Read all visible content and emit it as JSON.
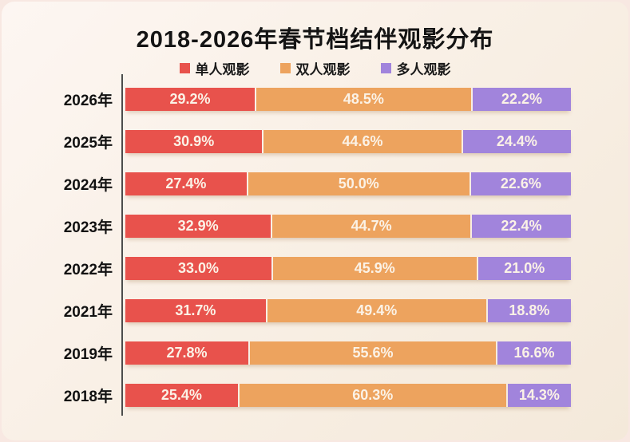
{
  "title": "2018-2026年春节档结伴观影分布",
  "colors": {
    "solo": "#E8524C",
    "pair": "#EDA35E",
    "group": "#A184DC",
    "bar_label_text": "#FBF2E6",
    "axis_line": "#4D4D4D",
    "card_background_top": "#FDF6F2",
    "card_background_bottom": "#F4E9DA"
  },
  "chart_data": {
    "type": "bar",
    "orientation": "horizontal",
    "stacked": true,
    "title": "2018-2026年春节档结伴观影分布",
    "legend_position": "top",
    "grid": false,
    "xlim": [
      0,
      100
    ],
    "value_suffix": "%",
    "categories": [
      "2026年",
      "2025年",
      "2024年",
      "2023年",
      "2022年",
      "2021年",
      "2019年",
      "2018年"
    ],
    "series": [
      {
        "name": "单人观影",
        "color": "#E8524C",
        "values": [
          29.2,
          30.9,
          27.4,
          32.9,
          33.0,
          31.7,
          27.8,
          25.4
        ]
      },
      {
        "name": "双人观影",
        "color": "#EDA35E",
        "values": [
          48.5,
          44.6,
          50.0,
          44.7,
          45.9,
          49.4,
          55.6,
          60.3
        ]
      },
      {
        "name": "多人观影",
        "color": "#A184DC",
        "values": [
          22.2,
          24.4,
          22.6,
          22.4,
          21.0,
          18.8,
          16.6,
          14.3
        ]
      }
    ]
  }
}
